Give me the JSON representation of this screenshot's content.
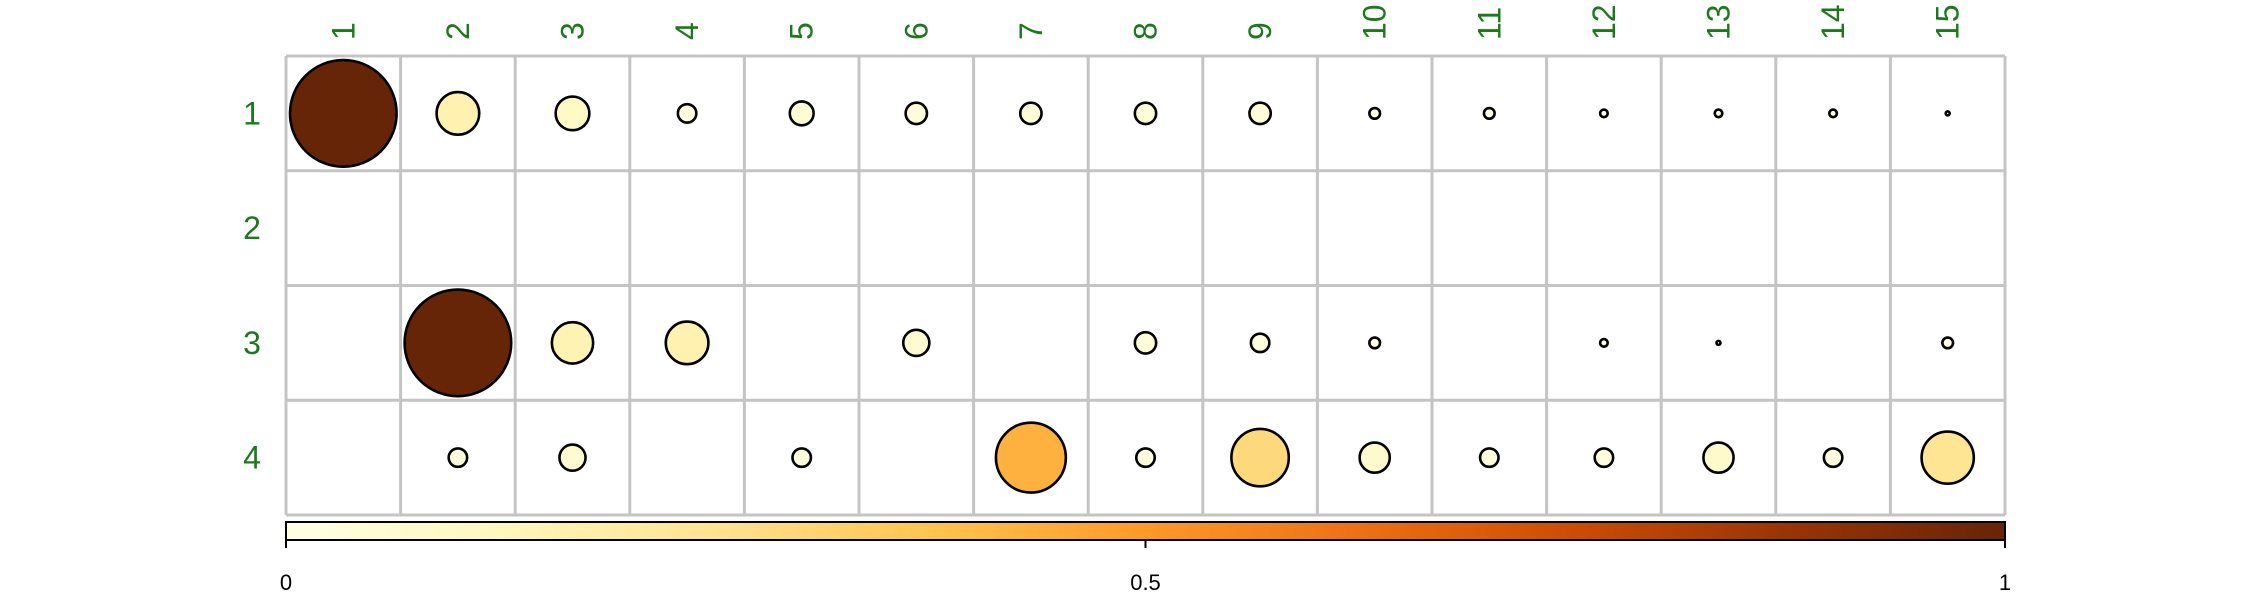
{
  "chart_data": {
    "type": "heatmap",
    "subtype": "bubble-correlation-matrix",
    "title": "",
    "xlabel": "",
    "ylabel": "",
    "columns": [
      "1",
      "2",
      "3",
      "4",
      "5",
      "6",
      "7",
      "8",
      "9",
      "10",
      "11",
      "12",
      "13",
      "14",
      "15"
    ],
    "rows": [
      "1",
      "2",
      "3",
      "4"
    ],
    "value_range": [
      0,
      1
    ],
    "values": [
      [
        1.0,
        0.16,
        0.1,
        0.03,
        0.05,
        0.04,
        0.04,
        0.04,
        0.04,
        0.01,
        0.01,
        0.005,
        0.005,
        0.005,
        0.001
      ],
      [
        null,
        null,
        null,
        null,
        null,
        null,
        null,
        null,
        null,
        null,
        null,
        null,
        null,
        null,
        null
      ],
      [
        null,
        1.0,
        0.15,
        0.16,
        null,
        0.06,
        null,
        0.04,
        0.03,
        0.01,
        null,
        0.005,
        0.001,
        null,
        0.01
      ],
      [
        null,
        0.03,
        0.06,
        null,
        0.03,
        null,
        0.43,
        0.03,
        0.29,
        0.08,
        0.03,
        0.03,
        0.08,
        0.03,
        0.24
      ]
    ],
    "colorbar": {
      "ticks": [
        "0",
        "0.5",
        "1"
      ],
      "colors": [
        "#ffffe5",
        "#fff7bc",
        "#fee391",
        "#fec44f",
        "#fe9929",
        "#ec7014",
        "#cc4c02",
        "#993404",
        "#662506"
      ]
    },
    "grid": true,
    "legend": "colorbar-bottom"
  }
}
